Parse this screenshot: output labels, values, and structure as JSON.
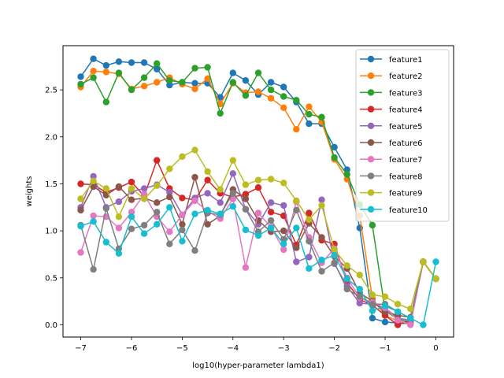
{
  "chart_data": {
    "type": "line",
    "title": "",
    "xlabel": "log10(hyper-parameter lambda1)",
    "ylabel": "weights",
    "xlim": [
      -7.35,
      0.35
    ],
    "ylim": [
      -0.13,
      2.97
    ],
    "xticks": [
      -7,
      -6,
      -5,
      -4,
      -3,
      -2,
      -1,
      0
    ],
    "xtick_labels": [
      "−7",
      "−6",
      "−5",
      "−4",
      "−3",
      "−2",
      "−1",
      "0"
    ],
    "yticks": [
      0.0,
      0.5,
      1.0,
      1.5,
      2.0,
      2.5
    ],
    "ytick_labels": [
      "0.0",
      "0.5",
      "1.0",
      "1.5",
      "2.0",
      "2.5"
    ],
    "grid": false,
    "legend_position": "upper right",
    "marker": "circle",
    "x": [
      -7.0,
      -6.75,
      -6.5,
      -6.25,
      -6.0,
      -5.75,
      -5.5,
      -5.25,
      -5.0,
      -4.75,
      -4.5,
      -4.25,
      -4.0,
      -3.75,
      -3.5,
      -3.25,
      -3.0,
      -2.75,
      -2.5,
      -2.25,
      -2.0,
      -1.75,
      -1.5,
      -1.25,
      -1.0,
      -0.75,
      -0.5,
      -0.25,
      0.0
    ],
    "series": [
      {
        "name": "feature1",
        "color": "#1f77b4",
        "values": [
          2.64,
          2.83,
          2.76,
          2.8,
          2.79,
          2.79,
          2.72,
          2.55,
          2.58,
          2.57,
          2.57,
          2.42,
          2.68,
          2.6,
          2.45,
          2.58,
          2.53,
          2.37,
          2.14,
          2.14,
          1.89,
          1.65,
          1.03,
          0.07,
          0.03,
          0.02,
          0.01,
          0.67,
          0.49
        ]
      },
      {
        "name": "feature2",
        "color": "#ff7f0e",
        "values": [
          2.53,
          2.7,
          2.69,
          2.67,
          2.51,
          2.54,
          2.58,
          2.63,
          2.56,
          2.51,
          2.62,
          2.35,
          2.57,
          2.47,
          2.48,
          2.41,
          2.31,
          2.08,
          2.32,
          2.16,
          1.76,
          1.55,
          1.16,
          0.28,
          0.1,
          0.04,
          0.02,
          0.67,
          0.49
        ]
      },
      {
        "name": "feature3",
        "color": "#2ca02c",
        "values": [
          2.56,
          2.63,
          2.37,
          2.68,
          2.5,
          2.63,
          2.78,
          2.6,
          2.58,
          2.73,
          2.74,
          2.25,
          2.58,
          2.44,
          2.68,
          2.5,
          2.43,
          2.39,
          2.24,
          2.21,
          1.78,
          1.6,
          1.28,
          1.06,
          0.15,
          0.06,
          0.03,
          0.67,
          0.49
        ]
      },
      {
        "name": "feature4",
        "color": "#d62728",
        "values": [
          1.5,
          1.49,
          1.41,
          1.46,
          1.52,
          1.37,
          1.75,
          1.45,
          1.35,
          1.33,
          1.54,
          1.4,
          1.36,
          1.39,
          1.46,
          1.2,
          1.16,
          0.85,
          1.19,
          0.9,
          0.86,
          0.45,
          0.27,
          0.21,
          0.1,
          0.0,
          0.05,
          0.67,
          0.49
        ]
      },
      {
        "name": "feature5",
        "color": "#9467bd",
        "values": [
          1.25,
          1.58,
          1.25,
          1.31,
          1.42,
          1.45,
          1.49,
          1.41,
          1.17,
          1.35,
          1.4,
          1.3,
          1.61,
          1.23,
          1.07,
          1.3,
          1.27,
          0.67,
          0.72,
          1.33,
          0.65,
          0.41,
          0.23,
          0.22,
          0.18,
          0.07,
          0.05,
          0.67,
          0.49
        ]
      },
      {
        "name": "feature6",
        "color": "#8c564b",
        "values": [
          1.22,
          1.47,
          1.38,
          1.47,
          1.33,
          1.35,
          1.3,
          1.36,
          1.07,
          1.57,
          1.07,
          1.16,
          1.44,
          1.34,
          1.11,
          0.99,
          1.0,
          0.82,
          1.08,
          0.93,
          0.73,
          0.6,
          0.34,
          0.25,
          0.14,
          0.1,
          0.08,
          0.67,
          0.49
        ]
      },
      {
        "name": "feature7",
        "color": "#e377c2",
        "values": [
          0.77,
          1.16,
          1.15,
          1.03,
          1.2,
          1.39,
          1.15,
          0.99,
          1.17,
          1.32,
          1.21,
          1.13,
          1.34,
          0.61,
          1.19,
          1.04,
          0.8,
          1.31,
          0.93,
          0.66,
          0.81,
          0.5,
          0.29,
          0.24,
          0.18,
          0.05,
          0.0,
          0.67,
          0.49
        ]
      },
      {
        "name": "feature8",
        "color": "#7f7f7f",
        "values": [
          1.06,
          0.59,
          1.24,
          0.81,
          1.02,
          1.06,
          1.2,
          0.86,
          1.01,
          0.79,
          1.19,
          1.17,
          1.4,
          1.23,
          0.99,
          1.11,
          0.91,
          1.22,
          0.89,
          0.57,
          0.66,
          0.38,
          0.3,
          0.22,
          0.22,
          0.14,
          0.07,
          0.67,
          0.49
        ]
      },
      {
        "name": "feature9",
        "color": "#bcbd22",
        "values": [
          1.34,
          1.53,
          1.45,
          1.15,
          1.45,
          1.34,
          1.48,
          1.66,
          1.79,
          1.86,
          1.63,
          1.44,
          1.75,
          1.49,
          1.54,
          1.55,
          1.51,
          1.32,
          1.12,
          1.27,
          0.8,
          0.63,
          0.53,
          0.32,
          0.3,
          0.22,
          0.17,
          0.67,
          0.49
        ]
      },
      {
        "name": "feature10",
        "color": "#17becf",
        "values": [
          1.05,
          1.1,
          0.88,
          0.76,
          1.15,
          0.97,
          1.07,
          1.25,
          0.89,
          1.18,
          1.22,
          1.18,
          1.26,
          1.01,
          0.95,
          1.03,
          0.86,
          1.03,
          0.6,
          0.69,
          0.74,
          0.49,
          0.38,
          0.15,
          0.2,
          0.14,
          0.07,
          0.0,
          0.67
        ]
      }
    ]
  }
}
